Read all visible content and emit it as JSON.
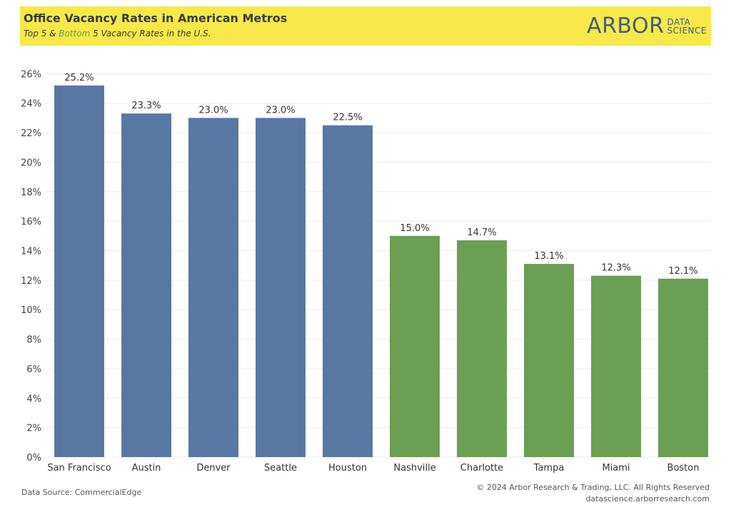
{
  "header": {
    "title": "Office Vacancy Rates in American Metros",
    "subtitle_part1": "Top 5",
    "subtitle_part2": " & ",
    "subtitle_part3": "Bottom",
    "subtitle_part4": " 5 Vacancy Rates in the U.S.",
    "logo_word": "ARBOR",
    "logo_sub1": "DATA",
    "logo_sub2": "SCIENCE"
  },
  "colors": {
    "header_bg": "#f7e84a",
    "top_series": "#5878a3",
    "bottom_series": "#6a9f54",
    "logo": "#3f5f7f"
  },
  "chart_data": {
    "type": "bar",
    "title": "Office Vacancy Rates in American Metros",
    "subtitle": "Top 5 & Bottom 5 Vacancy Rates in the U.S.",
    "categories": [
      "San Francisco",
      "Austin",
      "Denver",
      "Seattle",
      "Houston",
      "Nashville",
      "Charlotte",
      "Tampa",
      "Miami",
      "Boston"
    ],
    "values": [
      25.2,
      23.3,
      23.0,
      23.0,
      22.5,
      15.0,
      14.7,
      13.1,
      12.3,
      12.1
    ],
    "value_labels": [
      "25.2%",
      "23.3%",
      "23.0%",
      "23.0%",
      "22.5%",
      "15.0%",
      "14.7%",
      "13.1%",
      "12.3%",
      "12.1%"
    ],
    "groups": [
      "top",
      "top",
      "top",
      "top",
      "top",
      "bottom",
      "bottom",
      "bottom",
      "bottom",
      "bottom"
    ],
    "yticks": [
      0,
      2,
      4,
      6,
      8,
      10,
      12,
      14,
      16,
      18,
      20,
      22,
      24,
      26
    ],
    "ytick_labels": [
      "0%",
      "2%",
      "4%",
      "6%",
      "8%",
      "10%",
      "12%",
      "14%",
      "16%",
      "18%",
      "20%",
      "22%",
      "24%",
      "26%"
    ],
    "ylim": [
      0,
      26.5
    ],
    "xlabel": "",
    "ylabel": "",
    "grid": true
  },
  "footer": {
    "source": "Data Source: CommercialEdge",
    "copyright": "© 2024 Arbor Research & Trading, LLC. All Rights Reserved",
    "website": "datascience.arborresearch.com"
  }
}
